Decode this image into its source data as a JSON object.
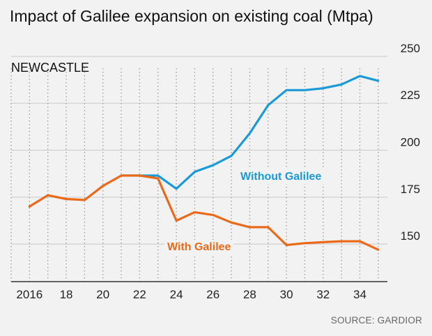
{
  "title": "Impact of Galilee expansion on existing coal (Mtpa)",
  "source": "SOURCE: GARDIOR",
  "chart_data": {
    "type": "line",
    "subtitle": "NEWCASTLE",
    "xlabel": "",
    "ylabel": "",
    "xlim": [
      2015,
      2035.5
    ],
    "ylim": [
      130,
      257
    ],
    "x_ticks": [
      2016,
      2018,
      2020,
      2022,
      2024,
      2026,
      2028,
      2030,
      2032,
      2034
    ],
    "x_tick_labels": [
      "2016",
      "18",
      "20",
      "22",
      "24",
      "26",
      "28",
      "30",
      "32",
      "34"
    ],
    "x_minor_gridlines": [
      2015,
      2017,
      2019,
      2021,
      2023,
      2025,
      2027,
      2029,
      2031,
      2033,
      2035
    ],
    "y_ticks": [
      150,
      175,
      200,
      225,
      250
    ],
    "grid": true,
    "colors": {
      "Without Galilee": "#1a9ad6",
      "With Galilee": "#ea6a1a"
    },
    "series": [
      {
        "name": "Without Galilee",
        "label_position": "right",
        "x": [
          2021,
          2022,
          2023,
          2024,
          2025,
          2026,
          2027,
          2028,
          2029,
          2030,
          2031,
          2032,
          2033,
          2034,
          2035
        ],
        "values": [
          186.5,
          186.5,
          186.5,
          179.5,
          188.5,
          192,
          197,
          209,
          224,
          232,
          232,
          233,
          235,
          239.5,
          237
        ]
      },
      {
        "name": "With Galilee",
        "label_position": "below",
        "x": [
          2016,
          2017,
          2018,
          2019,
          2020,
          2021,
          2022,
          2023,
          2024,
          2025,
          2026,
          2027,
          2028,
          2029,
          2030,
          2031,
          2032,
          2033,
          2034,
          2035
        ],
        "values": [
          170,
          176,
          174,
          173.5,
          181,
          186.5,
          186.5,
          185,
          162.5,
          167,
          165.5,
          161.5,
          159,
          159,
          149.5,
          150.5,
          151,
          151.5,
          151.5,
          147
        ]
      }
    ]
  }
}
